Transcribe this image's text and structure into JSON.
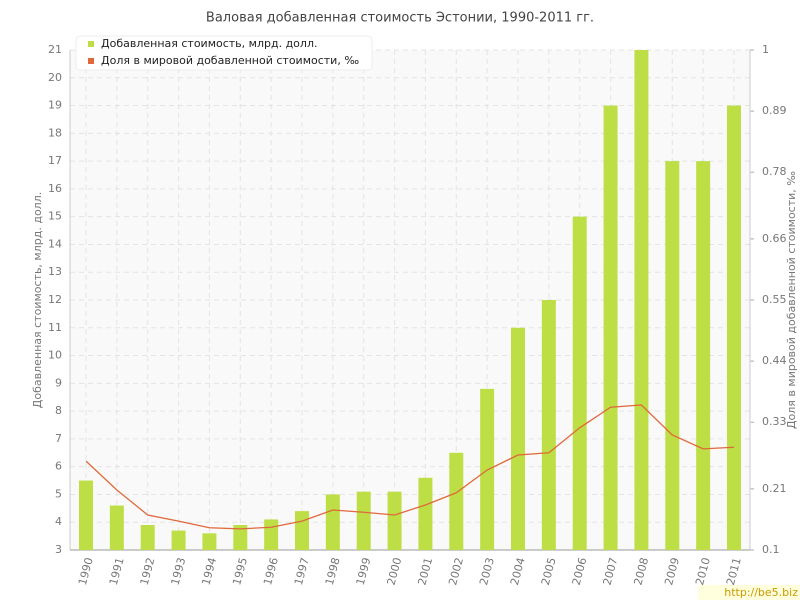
{
  "chart_data": {
    "type": "bar-line",
    "title": "Валовая добавленная стоимость Эстонии, 1990-2011 гг.",
    "y_label": "Добавленная стоимость, млрд. долл.",
    "y2_label": "Доля в мировой добавленной стоимости, ‰",
    "watermark": "http://be5.biz",
    "categories": [
      "1990",
      "1991",
      "1992",
      "1993",
      "1994",
      "1995",
      "1996",
      "1997",
      "1998",
      "1999",
      "2000",
      "2001",
      "2002",
      "2003",
      "2004",
      "2005",
      "2006",
      "2007",
      "2008",
      "2009",
      "2010",
      "2011"
    ],
    "series": [
      {
        "name": "Добавленная стоимость, млрд. долл.",
        "color": "#bede45",
        "kind": "bar",
        "values": [
          5.5,
          4.6,
          3.9,
          3.7,
          3.6,
          3.9,
          4.1,
          4.4,
          5,
          5.1,
          5.1,
          5.6,
          6.5,
          8.8,
          11,
          12,
          15,
          19,
          21,
          17,
          17,
          19
        ]
      },
      {
        "name": "Доля в мировой добавленной стоимости, ‰",
        "color": "#e0683a",
        "kind": "line",
        "axis": "y2",
        "values": [
          0.26,
          0.208,
          0.163,
          0.152,
          0.14,
          0.138,
          0.141,
          0.152,
          0.172,
          0.168,
          0.163,
          0.181,
          0.203,
          0.244,
          0.271,
          0.275,
          0.32,
          0.357,
          0.361,
          0.307,
          0.282,
          0.285
        ]
      }
    ],
    "ylim": [
      3,
      21
    ],
    "yticks": [
      3,
      4,
      5,
      6,
      7,
      8,
      9,
      10,
      11,
      12,
      13,
      14,
      15,
      16,
      17,
      18,
      19,
      20,
      21
    ],
    "y2lim": [
      0.1,
      1
    ],
    "y2ticks": [
      0.1,
      0.21,
      0.33,
      0.44,
      0.55,
      0.66,
      0.78,
      0.89,
      1
    ],
    "grid": true
  }
}
